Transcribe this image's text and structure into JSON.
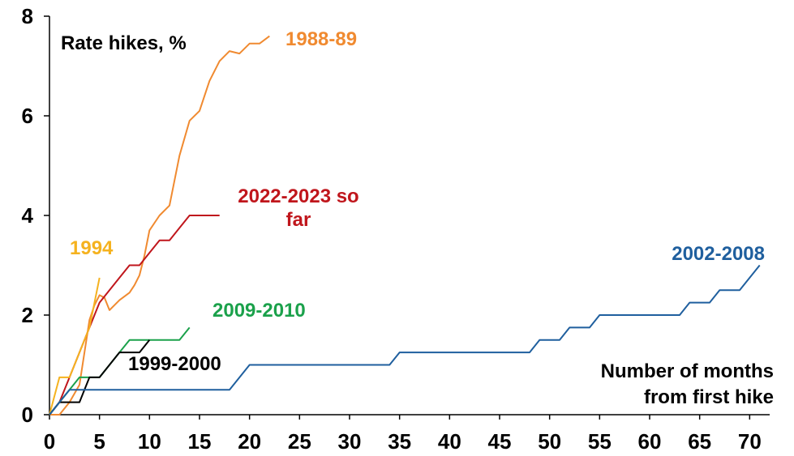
{
  "chart_data": {
    "type": "line",
    "title": "Rate hikes, %",
    "xlabel": "Number of months\nfrom first hike",
    "ylabel": "",
    "xlim": [
      0,
      72
    ],
    "ylim": [
      0,
      8
    ],
    "xticks": [
      0,
      5,
      10,
      15,
      20,
      25,
      30,
      35,
      40,
      45,
      50,
      55,
      60,
      65,
      70
    ],
    "yticks": [
      0,
      2,
      4,
      6,
      8
    ],
    "grid": false,
    "legend": "none",
    "series": [
      {
        "name": "1988-89",
        "color": "#F08A30",
        "label_lines": [
          "1988-89"
        ],
        "x": [
          0,
          1,
          2,
          3,
          4,
          4.5,
          5,
          5.5,
          6,
          6.5,
          7,
          8,
          8.5,
          9,
          9.5,
          10,
          11,
          12,
          13,
          14,
          15,
          16,
          17,
          18,
          19,
          20,
          21,
          22
        ],
        "values": [
          0,
          0,
          0.25,
          0.6,
          1.9,
          2.2,
          2.4,
          2.35,
          2.1,
          2.2,
          2.3,
          2.45,
          2.6,
          2.8,
          3.2,
          3.7,
          4.0,
          4.2,
          5.2,
          5.9,
          6.1,
          6.7,
          7.1,
          7.3,
          7.25,
          7.45,
          7.45,
          7.6
        ]
      },
      {
        "name": "2022-2023 so far",
        "color": "#C0161C",
        "label_lines": [
          "2022-2023 so",
          "far"
        ],
        "x": [
          0,
          1,
          2,
          3,
          4,
          5,
          6,
          7,
          8,
          9,
          10,
          11,
          12,
          13,
          14,
          15,
          16,
          17
        ],
        "values": [
          0,
          0.25,
          0.75,
          1.25,
          1.75,
          2.25,
          2.5,
          2.75,
          3.0,
          3.0,
          3.25,
          3.5,
          3.5,
          3.75,
          4.0,
          4.0,
          4.0,
          4.0
        ]
      },
      {
        "name": "1994",
        "color": "#F5B21F",
        "label_lines": [
          "1994"
        ],
        "x": [
          0,
          1,
          2,
          3,
          4,
          5
        ],
        "values": [
          0,
          0.75,
          0.75,
          1.25,
          1.75,
          2.75
        ]
      },
      {
        "name": "2009-2010",
        "color": "#1BA14B",
        "label_lines": [
          "2009-2010"
        ],
        "x": [
          0,
          1,
          2,
          3,
          4,
          5,
          6,
          7,
          8,
          9,
          10,
          11,
          12,
          13,
          14
        ],
        "values": [
          0,
          0.25,
          0.5,
          0.75,
          0.75,
          0.75,
          1.0,
          1.25,
          1.5,
          1.5,
          1.5,
          1.5,
          1.5,
          1.5,
          1.75
        ]
      },
      {
        "name": "1999-2000",
        "color": "#000000",
        "label_lines": [
          "1999-2000"
        ],
        "x": [
          0,
          1,
          2,
          3,
          4,
          5,
          6,
          7,
          8,
          9,
          10
        ],
        "values": [
          0,
          0.25,
          0.25,
          0.25,
          0.75,
          0.75,
          1.0,
          1.25,
          1.25,
          1.25,
          1.5
        ]
      },
      {
        "name": "2002-2008",
        "color": "#1F5F9E",
        "label_lines": [
          "2002-2008"
        ],
        "x": [
          0,
          1,
          2,
          18,
          20,
          34,
          35,
          48,
          49,
          51,
          52,
          54,
          55,
          63,
          64,
          66,
          67,
          69,
          71
        ],
        "values": [
          0,
          0.25,
          0.5,
          0.5,
          1.0,
          1.0,
          1.25,
          1.25,
          1.5,
          1.5,
          1.75,
          1.75,
          2.0,
          2.0,
          2.25,
          2.25,
          2.5,
          2.5,
          3.0
        ]
      }
    ]
  }
}
